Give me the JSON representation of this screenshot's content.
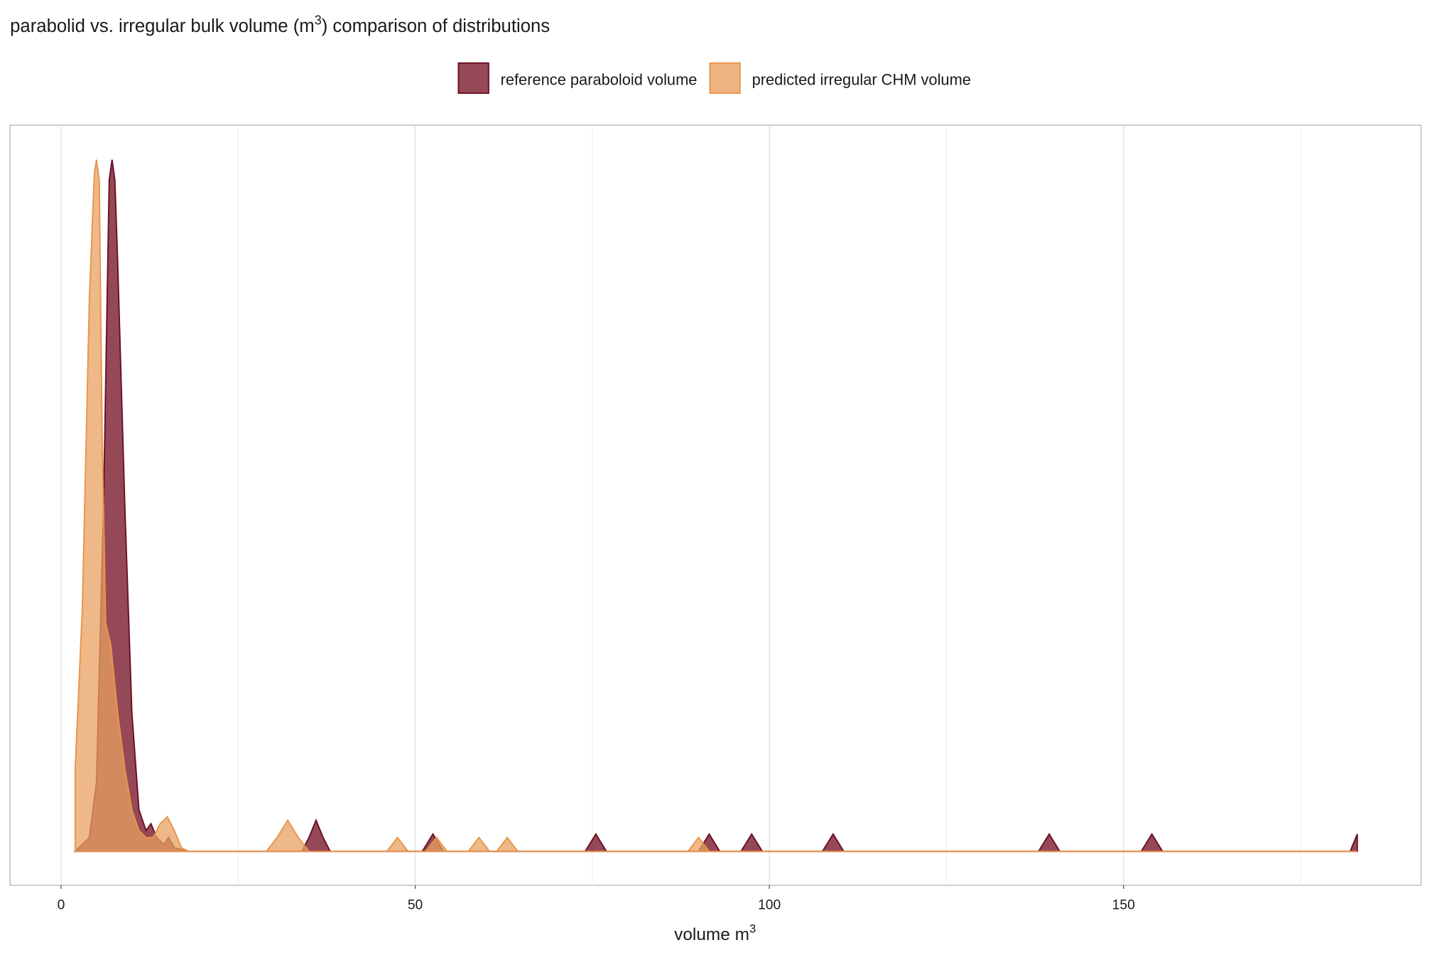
{
  "chart_data": {
    "type": "density",
    "title": "parabolid vs. irregular bulk volume (m",
    "title_sup": "3",
    "title_end": ") comparison of distributions",
    "x_label": "volume m",
    "x_label_sup": "3",
    "xlim": [
      -7.2,
      192
    ],
    "xticks": [
      0,
      50,
      100,
      150
    ],
    "minor_xticks": [
      25,
      75,
      125,
      175
    ],
    "ylim": [
      -0.049,
      1.05
    ],
    "grid": true,
    "legend": "top",
    "series": [
      {
        "name": "reference paraboloid volume",
        "color": "#7a1c2e",
        "stroke": "#6b0f22",
        "x": [
          2,
          4,
          5,
          6,
          6.8,
          7.2,
          7.6,
          8,
          9,
          10,
          11,
          12,
          12.7,
          13.5,
          14.5,
          15.2,
          16,
          18,
          34,
          35,
          36,
          37,
          38,
          51,
          52.5,
          54,
          74,
          75.5,
          77,
          90,
          91.5,
          93,
          96,
          97.5,
          99,
          107.5,
          109,
          110.5,
          138,
          139.5,
          141,
          152.5,
          154,
          155.5,
          182,
          183
        ],
        "values": [
          0,
          0.02,
          0.1,
          0.5,
          0.97,
          1.0,
          0.97,
          0.85,
          0.5,
          0.2,
          0.06,
          0.03,
          0.04,
          0.02,
          0.01,
          0.02,
          0.005,
          0,
          0,
          0.02,
          0.045,
          0.02,
          0,
          0,
          0.025,
          0,
          0,
          0.025,
          0,
          0,
          0.025,
          0,
          0,
          0.025,
          0,
          0,
          0.025,
          0,
          0,
          0.025,
          0,
          0,
          0.025,
          0,
          0,
          0.025
        ]
      },
      {
        "name": "predicted irregular CHM volume",
        "color": "#e8a060",
        "stroke": "#e8954a",
        "x": [
          2,
          3,
          4,
          4.7,
          5,
          5.4,
          5.8,
          6.3,
          7,
          8,
          9,
          10,
          11,
          12,
          13,
          14,
          15,
          16,
          17,
          18,
          29,
          30.5,
          32,
          33.5,
          35,
          46,
          47.5,
          49,
          51.5,
          53,
          54.5,
          57.5,
          59,
          60.5,
          61.5,
          63,
          64.5,
          88.5,
          90,
          91.5,
          183
        ],
        "values": [
          0.12,
          0.35,
          0.8,
          0.98,
          1.0,
          0.97,
          0.6,
          0.33,
          0.3,
          0.2,
          0.12,
          0.06,
          0.03,
          0.02,
          0.02,
          0.04,
          0.05,
          0.03,
          0.005,
          0,
          0,
          0.02,
          0.045,
          0.02,
          0,
          0,
          0.02,
          0,
          0,
          0.02,
          0,
          0,
          0.02,
          0,
          0,
          0.02,
          0,
          0,
          0.02,
          0,
          0
        ]
      }
    ]
  }
}
